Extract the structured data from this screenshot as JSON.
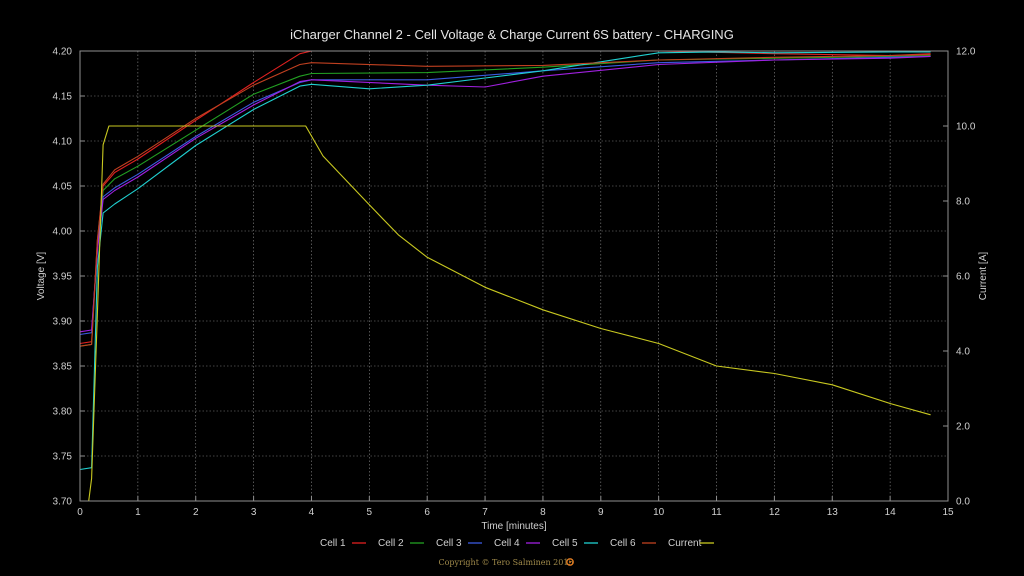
{
  "chart_data": {
    "type": "line",
    "title": "iCharger Channel 2 - Cell Voltage & Charge Current 6S battery - CHARGING",
    "xlabel": "Time [minutes]",
    "ylabel": "Voltage [V]",
    "y2label": "Current [A]",
    "xlim": [
      0,
      15
    ],
    "ylim": [
      3.7,
      4.2
    ],
    "y2lim": [
      0,
      12
    ],
    "xticks": [
      "0",
      "1",
      "2",
      "3",
      "4",
      "5",
      "6",
      "7",
      "8",
      "9",
      "10",
      "11",
      "12",
      "13",
      "14",
      "15"
    ],
    "yticks": [
      "3.70",
      "3.75",
      "3.80",
      "3.85",
      "3.90",
      "3.95",
      "4.00",
      "4.05",
      "4.10",
      "4.15",
      "4.20"
    ],
    "y2ticks": [
      "0.0",
      "2.0",
      "4.0",
      "6.0",
      "8.0",
      "10.0",
      "12.0"
    ],
    "grid": true,
    "legend_position": "bottom",
    "series": [
      {
        "name": "Cell 1",
        "color": "#e02020",
        "axis": "left",
        "x": [
          0.0,
          0.2,
          0.3,
          0.4,
          0.6,
          1.0,
          2.0,
          3.0,
          3.8,
          4.0,
          6.0,
          8.0,
          10.0,
          12.0,
          14.0,
          14.7
        ],
        "y": [
          3.875,
          3.877,
          3.99,
          4.05,
          4.065,
          4.08,
          4.123,
          4.165,
          4.197,
          4.2,
          4.2,
          4.2,
          4.2,
          4.197,
          4.195,
          4.197
        ]
      },
      {
        "name": "Cell 2",
        "color": "#22a022",
        "axis": "left",
        "x": [
          0.0,
          0.2,
          0.3,
          0.4,
          0.6,
          1.0,
          2.0,
          3.0,
          3.8,
          4.0,
          6.0,
          8.0,
          10.0,
          12.0,
          14.0,
          14.7
        ],
        "y": [
          3.872,
          3.874,
          3.985,
          4.045,
          4.058,
          4.072,
          4.112,
          4.152,
          4.172,
          4.175,
          4.176,
          4.182,
          4.19,
          4.192,
          4.194,
          4.195
        ]
      },
      {
        "name": "Cell 3",
        "color": "#3a5ae0",
        "axis": "left",
        "x": [
          0.0,
          0.2,
          0.3,
          0.4,
          0.6,
          1.0,
          2.0,
          3.0,
          3.8,
          4.0,
          6.0,
          8.0,
          10.0,
          12.0,
          14.0,
          14.7
        ],
        "y": [
          3.885,
          3.887,
          3.98,
          4.038,
          4.048,
          4.063,
          4.105,
          4.143,
          4.165,
          4.168,
          4.168,
          4.178,
          4.187,
          4.19,
          4.193,
          4.194
        ]
      },
      {
        "name": "Cell 4",
        "color": "#a020e0",
        "axis": "left",
        "x": [
          0.0,
          0.2,
          0.3,
          0.4,
          0.6,
          1.0,
          2.0,
          3.0,
          3.8,
          4.0,
          6.0,
          7.0,
          8.0,
          10.0,
          12.0,
          14.0,
          14.7
        ],
        "y": [
          3.888,
          3.89,
          3.978,
          4.035,
          4.045,
          4.06,
          4.103,
          4.14,
          4.166,
          4.168,
          4.162,
          4.16,
          4.172,
          4.185,
          4.19,
          4.192,
          4.194
        ]
      },
      {
        "name": "Cell 5",
        "color": "#20d0d0",
        "axis": "left",
        "x": [
          0.0,
          0.2,
          0.3,
          0.4,
          0.6,
          1.0,
          2.0,
          3.0,
          3.8,
          4.0,
          5.0,
          6.0,
          7.0,
          8.0,
          9.0,
          10.0,
          11.0,
          12.0,
          14.0,
          14.7
        ],
        "y": [
          3.735,
          3.737,
          3.96,
          4.02,
          4.03,
          4.047,
          4.095,
          4.135,
          4.161,
          4.163,
          4.158,
          4.162,
          4.17,
          4.178,
          4.188,
          4.198,
          4.199,
          4.198,
          4.199,
          4.199
        ]
      },
      {
        "name": "Cell 6",
        "color": "#c04020",
        "axis": "left",
        "x": [
          0.0,
          0.2,
          0.3,
          0.4,
          0.6,
          1.0,
          2.0,
          3.0,
          3.8,
          4.0,
          6.0,
          8.0,
          10.0,
          12.0,
          14.0,
          14.7
        ],
        "y": [
          3.872,
          3.874,
          3.99,
          4.052,
          4.068,
          4.083,
          4.125,
          4.162,
          4.185,
          4.187,
          4.183,
          4.184,
          4.19,
          4.193,
          4.195,
          4.196
        ]
      },
      {
        "name": "Current",
        "color": "#c8c820",
        "axis": "right",
        "x": [
          0.0,
          0.15,
          0.2,
          0.3,
          0.4,
          0.5,
          1.0,
          2.0,
          3.0,
          3.9,
          4.2,
          5.0,
          5.5,
          6.0,
          7.0,
          8.0,
          9.0,
          10.0,
          11.0,
          12.0,
          13.0,
          14.0,
          14.7
        ],
        "y": [
          0.0,
          0.0,
          0.6,
          5.0,
          9.5,
          10.0,
          10.0,
          10.0,
          10.0,
          10.0,
          9.2,
          7.9,
          7.1,
          6.5,
          5.7,
          5.1,
          4.6,
          4.2,
          3.6,
          3.4,
          3.1,
          2.6,
          2.3
        ]
      }
    ]
  },
  "footer": {
    "copyright": "Copyright © Tero Salminen 2015"
  }
}
